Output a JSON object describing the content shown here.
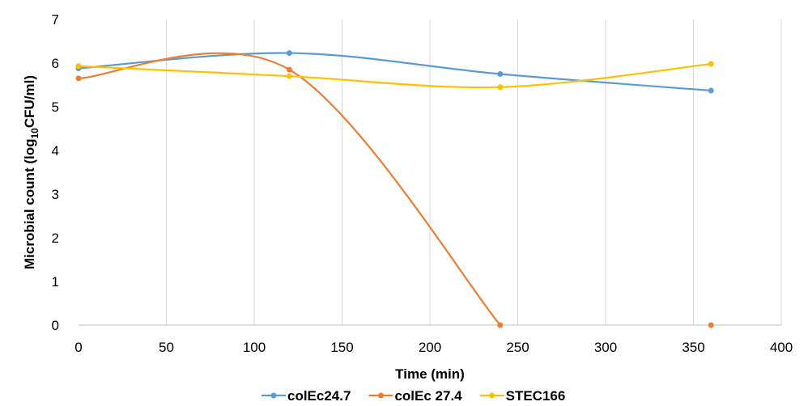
{
  "chart_data": {
    "type": "line",
    "smooth": true,
    "xlabel": "Time (min)",
    "ylabel": {
      "prefix": "Microbial count (log",
      "subscript": "10",
      "suffix": "CFU/ml)"
    },
    "xlim": [
      0,
      400
    ],
    "ylim": [
      0,
      7
    ],
    "xticks": [
      0,
      50,
      100,
      150,
      200,
      250,
      300,
      350,
      400
    ],
    "yticks": [
      0,
      1,
      2,
      3,
      4,
      5,
      6,
      7
    ],
    "grid": "vertical",
    "legend_position": "bottom",
    "series": [
      {
        "name": "colEc24.7",
        "color": "#5b9bd5",
        "x": [
          0,
          120,
          240,
          360
        ],
        "y": [
          5.88,
          6.23,
          5.75,
          5.37
        ]
      },
      {
        "name": "colEc 27.4",
        "color": "#ed7d31",
        "x": [
          0,
          120,
          240,
          360
        ],
        "y": [
          5.65,
          5.85,
          0.0,
          0.0
        ],
        "last_segment_hidden": true
      },
      {
        "name": "STEC166",
        "color": "#ffc000",
        "x": [
          0,
          120,
          240,
          360
        ],
        "y": [
          5.93,
          5.7,
          5.45,
          5.98
        ]
      }
    ]
  }
}
